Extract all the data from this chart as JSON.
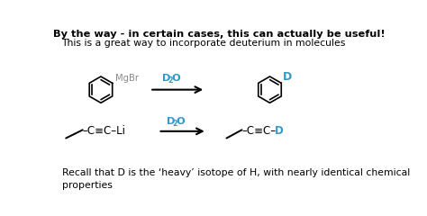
{
  "title_bold": "By the way - in certain cases, this can actually be useful!",
  "subtitle": "This is a great way to incorporate deuterium in molecules",
  "footer": "Recall that D is the ‘heavy’ isotope of H, with nearly identical chemical\nproperties",
  "bg_color": "#ffffff",
  "text_color": "#000000",
  "blue_color": "#3399cc",
  "gray_color": "#888888",
  "arrow_color": "#111111",
  "grignard_label": "MgBr",
  "product1_label": "D",
  "reactant2_text": "C≡C",
  "li_label": "Li",
  "d_label": "D"
}
